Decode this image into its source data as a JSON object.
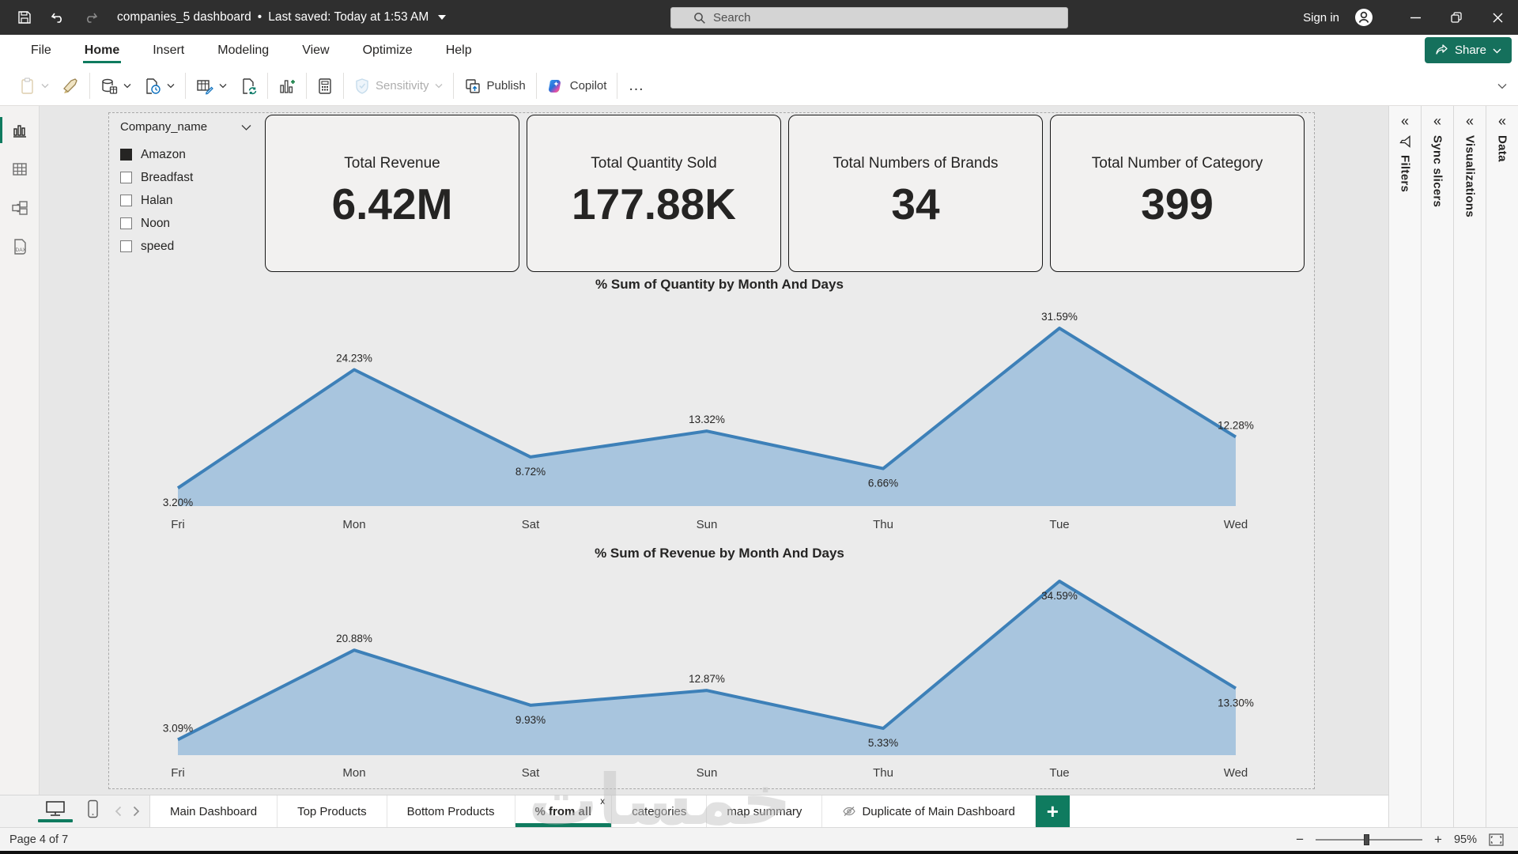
{
  "titlebar": {
    "title": "companies_5 dashboard",
    "separator": "•",
    "last_saved": "Last saved: Today at 1:53 AM",
    "search_placeholder": "Search",
    "sign_in_label": "Sign in"
  },
  "menu": {
    "items": [
      "File",
      "Home",
      "Insert",
      "Modeling",
      "View",
      "Optimize",
      "Help"
    ],
    "active": "Home",
    "share_label": "Share"
  },
  "ribbon": {
    "sensitivity_label": "Sensitivity",
    "publish_label": "Publish",
    "copilot_label": "Copilot",
    "more_label": "…"
  },
  "slicer": {
    "title": "Company_name",
    "items": [
      {
        "label": "Amazon",
        "checked": true
      },
      {
        "label": "Breadfast",
        "checked": false
      },
      {
        "label": "Halan",
        "checked": false
      },
      {
        "label": "Noon",
        "checked": false
      },
      {
        "label": "speed",
        "checked": false
      }
    ]
  },
  "cards": [
    {
      "title": "Total Revenue",
      "value": "6.42M"
    },
    {
      "title": "Total Quantity Sold",
      "value": "177.88K"
    },
    {
      "title": "Total Numbers of Brands",
      "value": "34"
    },
    {
      "title": "Total Number of Category",
      "value": "399"
    }
  ],
  "chart_data": [
    {
      "type": "area",
      "title": "% Sum of Quantity by Month And Days",
      "categories": [
        "Fri",
        "Mon",
        "Sat",
        "Sun",
        "Thu",
        "Tue",
        "Wed"
      ],
      "values": [
        3.2,
        24.23,
        8.72,
        13.32,
        6.66,
        31.59,
        12.28
      ],
      "data_labels": [
        "3.20%",
        "24.23%",
        "8.72%",
        "13.32%",
        "6.66%",
        "31.59%",
        "12.28%"
      ],
      "label_placement": [
        "below",
        "above",
        "below",
        "above",
        "below",
        "above",
        "above"
      ],
      "ylim": [
        0,
        35
      ],
      "grid": false,
      "legend": "none"
    },
    {
      "type": "area",
      "title": "% Sum of Revenue by Month And Days",
      "categories": [
        "Fri",
        "Mon",
        "Sat",
        "Sun",
        "Thu",
        "Tue",
        "Wed"
      ],
      "values": [
        3.09,
        20.88,
        9.93,
        12.87,
        5.33,
        34.59,
        13.3
      ],
      "data_labels": [
        "3.09%",
        "20.88%",
        "9.93%",
        "12.87%",
        "5.33%",
        "34.59%",
        "13.30%"
      ],
      "label_placement": [
        "above",
        "above",
        "below",
        "above",
        "below",
        "below",
        "below"
      ],
      "ylim": [
        0,
        38
      ],
      "grid": false,
      "legend": "none"
    }
  ],
  "right_panels": [
    {
      "label": "Filters",
      "icon": "filter-icon"
    },
    {
      "label": "Sync slicers",
      "icon": ""
    },
    {
      "label": "Visualizations",
      "icon": ""
    },
    {
      "label": "Data",
      "icon": ""
    }
  ],
  "tabs": {
    "pages": [
      {
        "label": "Main Dashboard",
        "active": false,
        "closable": false,
        "hidden_icon": false
      },
      {
        "label": "Top Products",
        "active": false,
        "closable": false,
        "hidden_icon": false
      },
      {
        "label": "Bottom Products",
        "active": false,
        "closable": false,
        "hidden_icon": false
      },
      {
        "label": "% from all",
        "active": true,
        "closable": true,
        "hidden_icon": false
      },
      {
        "label": "categories",
        "active": false,
        "closable": false,
        "hidden_icon": false
      },
      {
        "label": "map summary",
        "active": false,
        "closable": false,
        "hidden_icon": false
      },
      {
        "label": "Duplicate of Main Dashboard",
        "active": false,
        "closable": false,
        "hidden_icon": true
      }
    ],
    "new_page_label": "+",
    "close_label": "x"
  },
  "statusbar": {
    "page_indicator": "Page 4 of 7",
    "zoom_level": "95%"
  },
  "watermark": "خمسات",
  "colors": {
    "accent": "#0F7B5F",
    "share_button": "#15705C",
    "titlebar_bg": "#2F2F2F",
    "area_fill": "#A8C5DE",
    "line_color": "#3D80B8",
    "page_bg": "#EBEBEB"
  }
}
